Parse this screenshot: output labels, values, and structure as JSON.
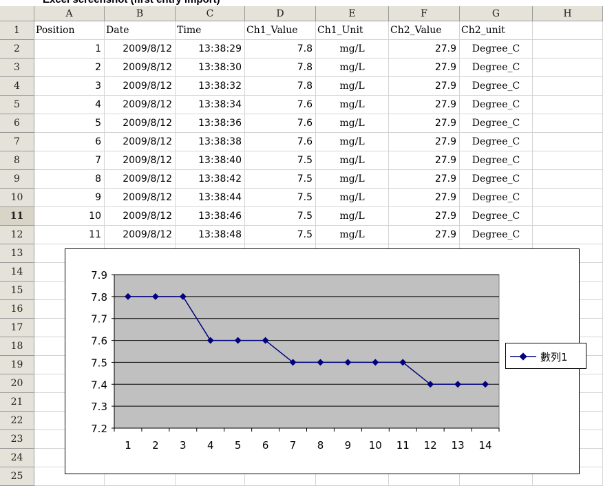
{
  "window": {
    "title": "Excel screenshot (first entry import)"
  },
  "colors": {
    "header_bg": "#e5e2d9",
    "plot_bg": "#c0c0c0",
    "series": "#000080"
  },
  "columns": [
    "A",
    "B",
    "C",
    "D",
    "E",
    "F",
    "G",
    "H"
  ],
  "row_numbers": [
    "1",
    "2",
    "3",
    "4",
    "5",
    "6",
    "7",
    "8",
    "9",
    "10",
    "11",
    "12",
    "13",
    "14",
    "15",
    "16",
    "17",
    "18",
    "19",
    "20",
    "21",
    "22",
    "23",
    "24",
    "25"
  ],
  "active_row": "11",
  "headers": [
    "Position",
    "Date",
    "Time",
    "Ch1_Value",
    "Ch1_Unit",
    "Ch2_Value",
    "Ch2_unit"
  ],
  "rows": [
    [
      "1",
      "2009/8/12",
      "13:38:29",
      "7.8",
      "mg/L",
      "27.9",
      "Degree_C"
    ],
    [
      "2",
      "2009/8/12",
      "13:38:30",
      "7.8",
      "mg/L",
      "27.9",
      "Degree_C"
    ],
    [
      "3",
      "2009/8/12",
      "13:38:32",
      "7.8",
      "mg/L",
      "27.9",
      "Degree_C"
    ],
    [
      "4",
      "2009/8/12",
      "13:38:34",
      "7.6",
      "mg/L",
      "27.9",
      "Degree_C"
    ],
    [
      "5",
      "2009/8/12",
      "13:38:36",
      "7.6",
      "mg/L",
      "27.9",
      "Degree_C"
    ],
    [
      "6",
      "2009/8/12",
      "13:38:38",
      "7.6",
      "mg/L",
      "27.9",
      "Degree_C"
    ],
    [
      "7",
      "2009/8/12",
      "13:38:40",
      "7.5",
      "mg/L",
      "27.9",
      "Degree_C"
    ],
    [
      "8",
      "2009/8/12",
      "13:38:42",
      "7.5",
      "mg/L",
      "27.9",
      "Degree_C"
    ],
    [
      "9",
      "2009/8/12",
      "13:38:44",
      "7.5",
      "mg/L",
      "27.9",
      "Degree_C"
    ],
    [
      "10",
      "2009/8/12",
      "13:38:46",
      "7.5",
      "mg/L",
      "27.9",
      "Degree_C"
    ],
    [
      "11",
      "2009/8/12",
      "13:38:48",
      "7.5",
      "mg/L",
      "27.9",
      "Degree_C"
    ]
  ],
  "chart_data": {
    "type": "line",
    "x": [
      1,
      2,
      3,
      4,
      5,
      6,
      7,
      8,
      9,
      10,
      11,
      12,
      13,
      14
    ],
    "series": [
      {
        "name": "數列1",
        "values": [
          7.8,
          7.8,
          7.8,
          7.6,
          7.6,
          7.6,
          7.5,
          7.5,
          7.5,
          7.5,
          7.5,
          7.4,
          7.4,
          7.4
        ]
      }
    ],
    "ylim": [
      7.2,
      7.9
    ],
    "yticks": [
      "7.2",
      "7.3",
      "7.4",
      "7.5",
      "7.6",
      "7.7",
      "7.8",
      "7.9"
    ],
    "xticks": [
      "1",
      "2",
      "3",
      "4",
      "5",
      "6",
      "7",
      "8",
      "9",
      "10",
      "11",
      "12",
      "13",
      "14"
    ],
    "grid": true,
    "legend": "right"
  }
}
